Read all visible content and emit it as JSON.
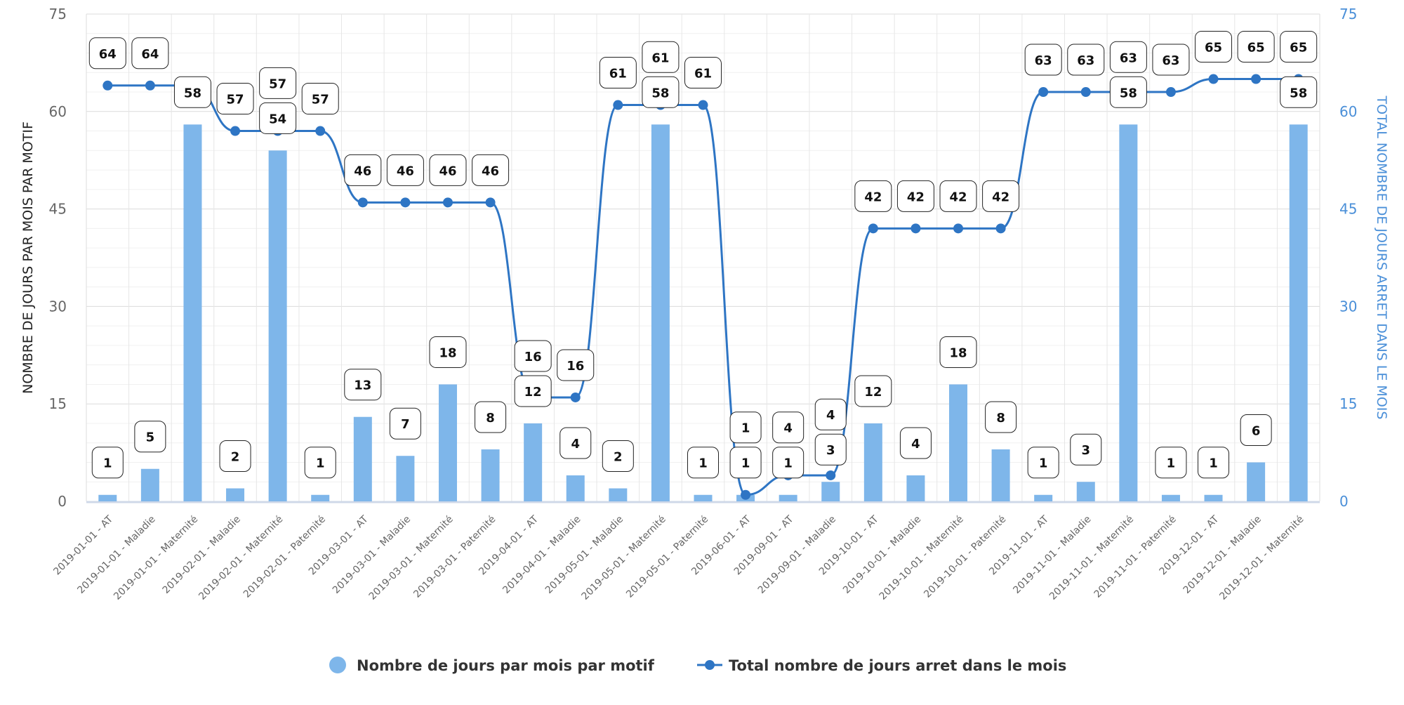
{
  "chart_data": {
    "type": "bar+line",
    "categories": [
      "2019-01-01 - AT",
      "2019-01-01 - Maladie",
      "2019-01-01 - Maternité",
      "2019-02-01 - Maladie",
      "2019-02-01 - Maternité",
      "2019-02-01 - Paternité",
      "2019-03-01 - AT",
      "2019-03-01 - Maladie",
      "2019-03-01 - Maternité",
      "2019-03-01 - Paternité",
      "2019-04-01 - AT",
      "2019-04-01 - Maladie",
      "2019-05-01 - Maladie",
      "2019-05-01 - Maternité",
      "2019-05-01 - Paternité",
      "2019-06-01 - AT",
      "2019-09-01 - AT",
      "2019-09-01 - Maladie",
      "2019-10-01 - AT",
      "2019-10-01 - Maladie",
      "2019-10-01 - Maternité",
      "2019-10-01 - Paternité",
      "2019-11-01 - AT",
      "2019-11-01 - Maladie",
      "2019-11-01 - Maternité",
      "2019-11-01 - Paternité",
      "2019-12-01 - AT",
      "2019-12-01 - Maladie",
      "2019-12-01 - Maternité"
    ],
    "series": [
      {
        "name": "Nombre de jours par mois par motif",
        "type": "bar",
        "axis": "left",
        "color": "#7eb6ea",
        "values": [
          1,
          5,
          58,
          2,
          54,
          1,
          13,
          7,
          18,
          8,
          12,
          4,
          2,
          58,
          1,
          1,
          1,
          3,
          12,
          4,
          18,
          8,
          1,
          3,
          58,
          1,
          1,
          6,
          58
        ]
      },
      {
        "name": "Total nombre de jours arret dans le mois",
        "type": "line",
        "axis": "right",
        "color": "#2e75c4",
        "values": [
          64,
          64,
          64,
          57,
          57,
          57,
          46,
          46,
          46,
          46,
          16,
          16,
          61,
          61,
          61,
          1,
          4,
          4,
          42,
          42,
          42,
          42,
          63,
          63,
          63,
          63,
          65,
          65,
          65
        ]
      }
    ],
    "ylabel": "NOMBRE DE JOURS PAR MOIS PAR MOTIF",
    "y2label": "TOTAL NOMBRE DE JOURS ARRET DANS LE MOIS",
    "ylim": [
      0,
      75
    ],
    "y2lim": [
      0,
      75
    ],
    "yticks": [
      0,
      15,
      30,
      45,
      60,
      75
    ],
    "grid": true,
    "legend": "bottom"
  }
}
